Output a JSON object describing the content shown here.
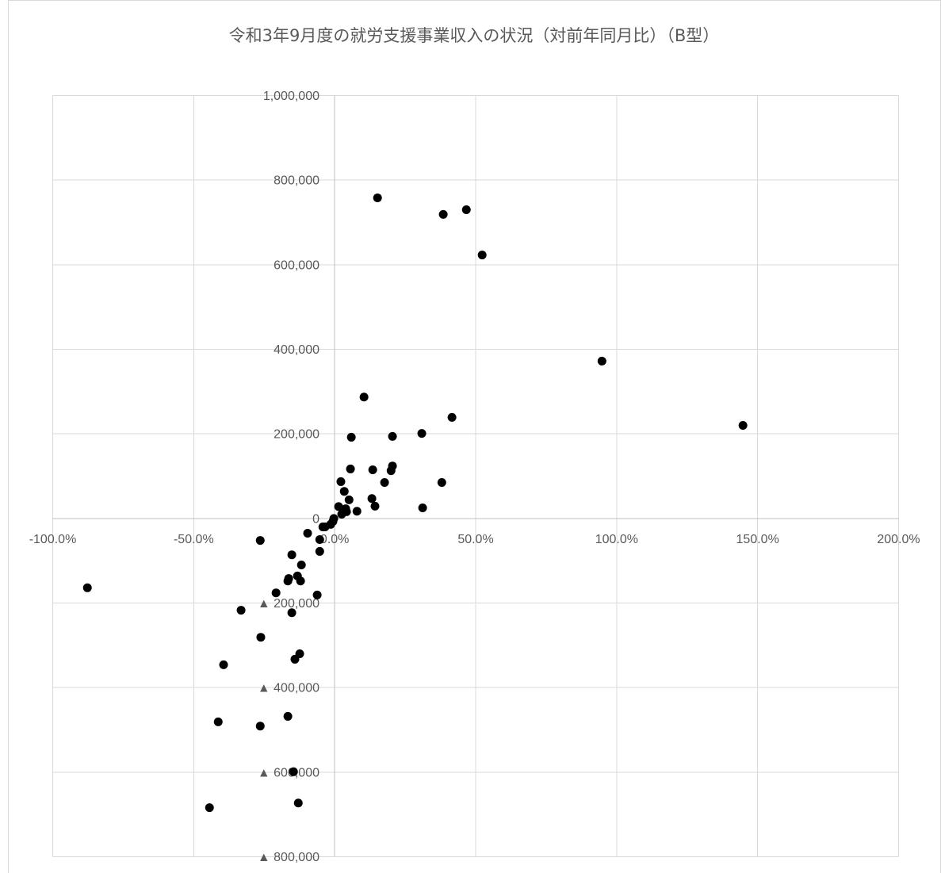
{
  "chart_data": {
    "type": "scatter",
    "title": "令和3年9月度の就労支援事業収入の状況（対前年同月比）（B型）",
    "xlabel": "",
    "ylabel": "",
    "xlim": [
      -100,
      200
    ],
    "ylim": [
      -800000,
      1000000
    ],
    "grid": true,
    "legend": "none",
    "marker": "circle",
    "colors": {
      "marker": "#000000",
      "grid": "#d9d9d9",
      "axis": "#bfbfbf",
      "border": "#d9d9d9",
      "text": "#595959"
    },
    "x_ticks": [
      {
        "value": -100,
        "label": "-100.0%"
      },
      {
        "value": -50,
        "label": "-50.0%"
      },
      {
        "value": 0,
        "label": "0.0%"
      },
      {
        "value": 50,
        "label": "50.0%"
      },
      {
        "value": 100,
        "label": "100.0%"
      },
      {
        "value": 150,
        "label": "150.0%"
      },
      {
        "value": 200,
        "label": "200.0%"
      }
    ],
    "y_ticks": [
      {
        "value": 1000000,
        "label": "1,000,000"
      },
      {
        "value": 800000,
        "label": "800,000"
      },
      {
        "value": 600000,
        "label": "600,000"
      },
      {
        "value": 400000,
        "label": "400,000"
      },
      {
        "value": 200000,
        "label": "200,000"
      },
      {
        "value": 0,
        "label": "0"
      },
      {
        "value": -200000,
        "label": "▲ 200,000"
      },
      {
        "value": -400000,
        "label": "▲ 400,000"
      },
      {
        "value": -600000,
        "label": "▲ 600,000"
      },
      {
        "value": -800000,
        "label": "▲ 800,000"
      }
    ],
    "points": [
      {
        "x": 15.2,
        "y": 758000
      },
      {
        "x": 38.5,
        "y": 719000
      },
      {
        "x": 46.7,
        "y": 730000
      },
      {
        "x": 52.3,
        "y": 623000
      },
      {
        "x": 94.8,
        "y": 372000
      },
      {
        "x": 144.8,
        "y": 220000
      },
      {
        "x": 10.4,
        "y": 287000
      },
      {
        "x": 41.6,
        "y": 239000
      },
      {
        "x": 30.9,
        "y": 201000
      },
      {
        "x": 5.9,
        "y": 192000
      },
      {
        "x": 20.5,
        "y": 194000
      },
      {
        "x": 20.5,
        "y": 124000
      },
      {
        "x": 20.0,
        "y": 113000
      },
      {
        "x": 13.5,
        "y": 115000
      },
      {
        "x": 5.6,
        "y": 117000
      },
      {
        "x": 17.7,
        "y": 85000
      },
      {
        "x": 38.0,
        "y": 85000
      },
      {
        "x": 2.2,
        "y": 87000
      },
      {
        "x": 3.4,
        "y": 64000
      },
      {
        "x": 13.2,
        "y": 47000
      },
      {
        "x": 5.1,
        "y": 44000
      },
      {
        "x": 14.3,
        "y": 29000
      },
      {
        "x": 31.2,
        "y": 25000
      },
      {
        "x": 1.4,
        "y": 28000
      },
      {
        "x": 3.9,
        "y": 23000
      },
      {
        "x": 7.9,
        "y": 17000
      },
      {
        "x": 4.2,
        "y": 16000
      },
      {
        "x": 2.5,
        "y": 10000
      },
      {
        "x": -0.3,
        "y": 0
      },
      {
        "x": -0.6,
        "y": -7000
      },
      {
        "x": -1.4,
        "y": -14000
      },
      {
        "x": -3.4,
        "y": -20000
      },
      {
        "x": -4.2,
        "y": -20000
      },
      {
        "x": -9.6,
        "y": -35000
      },
      {
        "x": -5.3,
        "y": -50000
      },
      {
        "x": -26.4,
        "y": -52000
      },
      {
        "x": -5.3,
        "y": -78000
      },
      {
        "x": -15.2,
        "y": -86000
      },
      {
        "x": -11.8,
        "y": -110000
      },
      {
        "x": -13.2,
        "y": -136000
      },
      {
        "x": -16.3,
        "y": -142000
      },
      {
        "x": -12.1,
        "y": -148000
      },
      {
        "x": -16.6,
        "y": -148000
      },
      {
        "x": -87.7,
        "y": -164000
      },
      {
        "x": -20.8,
        "y": -176000
      },
      {
        "x": -6.2,
        "y": -181000
      },
      {
        "x": -33.2,
        "y": -217000
      },
      {
        "x": -15.2,
        "y": -223000
      },
      {
        "x": -26.2,
        "y": -281000
      },
      {
        "x": -12.4,
        "y": -320000
      },
      {
        "x": -14.1,
        "y": -333000
      },
      {
        "x": -39.4,
        "y": -346000
      },
      {
        "x": -16.6,
        "y": -468000
      },
      {
        "x": -41.3,
        "y": -481000
      },
      {
        "x": -26.4,
        "y": -491000
      },
      {
        "x": -14.6,
        "y": -599000
      },
      {
        "x": -12.9,
        "y": -673000
      },
      {
        "x": -44.4,
        "y": -684000
      }
    ]
  }
}
